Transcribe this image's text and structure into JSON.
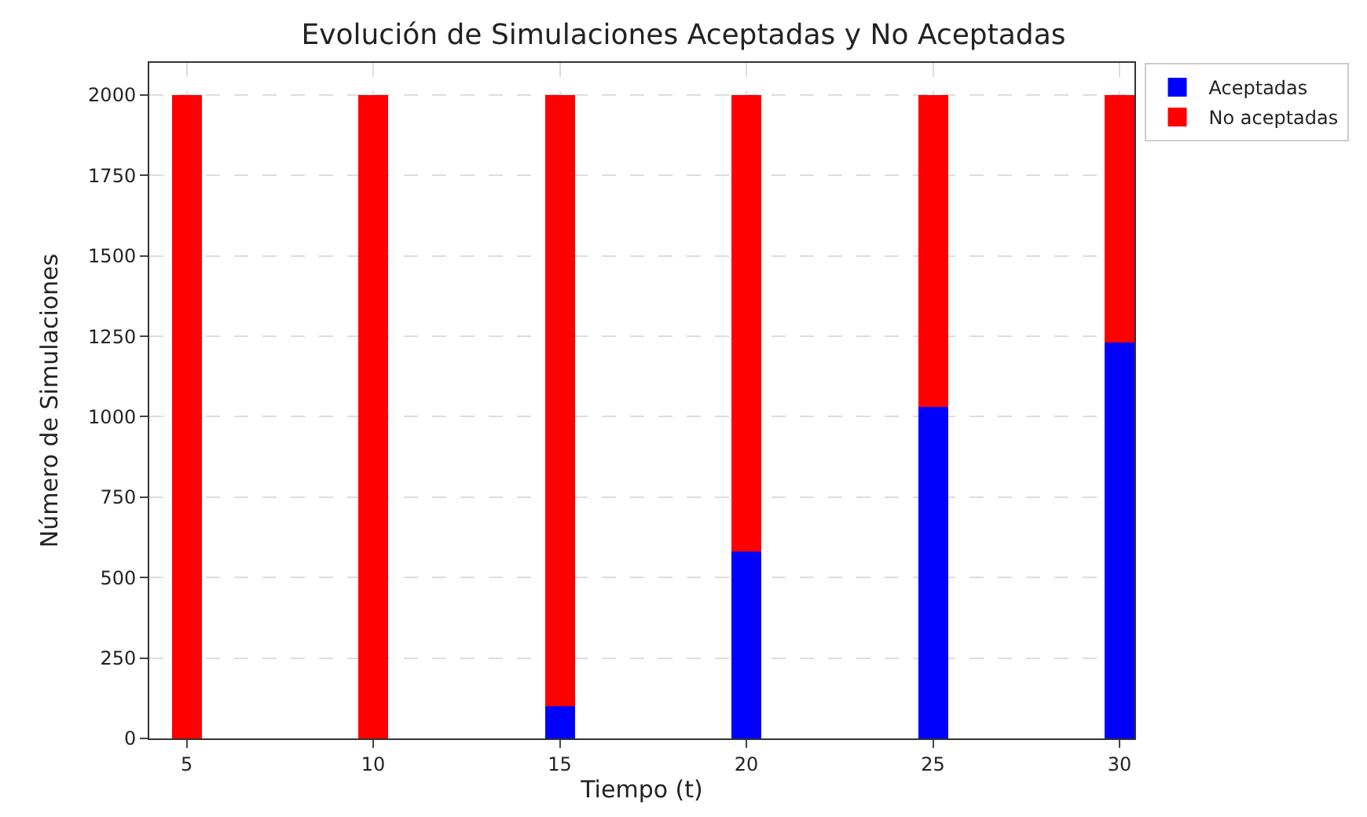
{
  "chart_data": {
    "type": "bar",
    "title": "Evolución de Simulaciones Aceptadas y No Aceptadas",
    "xlabel": "Tiempo (t)",
    "ylabel": "Número de Simulaciones",
    "x": [
      5,
      10,
      15,
      20,
      25,
      30
    ],
    "stacked": true,
    "series": [
      {
        "name": "Aceptadas",
        "color": "#0000ff",
        "values": [
          0,
          0,
          100,
          580,
          1030,
          1230
        ]
      },
      {
        "name": "No aceptadas",
        "color": "#ff0000",
        "values": [
          2000,
          2000,
          1900,
          1420,
          970,
          770
        ]
      }
    ],
    "xlim": [
      4,
      30.4
    ],
    "xticks": [
      5,
      10,
      15,
      20,
      25,
      30
    ],
    "ylim": [
      0,
      2100
    ],
    "yticks": [
      0,
      250,
      500,
      750,
      1000,
      1250,
      1500,
      1750,
      2000
    ],
    "grid": true,
    "legend": "top right"
  }
}
